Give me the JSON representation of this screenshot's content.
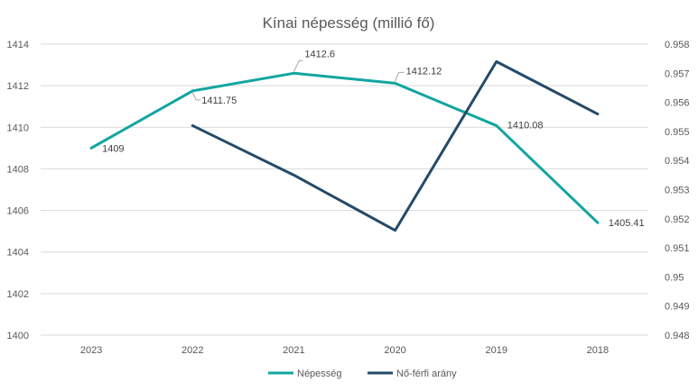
{
  "chart_data": {
    "type": "line",
    "title": "Kínai népesség (millió fő)",
    "categories": [
      "2023",
      "2022",
      "2021",
      "2020",
      "2019",
      "2018"
    ],
    "series": [
      {
        "name": "Népesség",
        "axis": "left",
        "color": "#12a5a0",
        "values": [
          1409,
          1411.75,
          1412.6,
          1412.12,
          1410.08,
          1405.41
        ],
        "data_labels": [
          "1409",
          "1411.75",
          "1412.6",
          "1412.12",
          "1410.08",
          "1405.41"
        ]
      },
      {
        "name": "Nő-férfi arány",
        "axis": "right",
        "color": "#264a66",
        "values": [
          null,
          0.9552,
          0.9535,
          0.9516,
          0.9574,
          0.9556
        ]
      }
    ],
    "y_left": {
      "lim": [
        1400,
        1414
      ],
      "ticks": [
        "1400",
        "1402",
        "1404",
        "1406",
        "1408",
        "1410",
        "1412",
        "1414"
      ]
    },
    "y_right": {
      "lim": [
        0.948,
        0.958
      ],
      "ticks": [
        "0.948",
        "0.949",
        "0.95",
        "0.951",
        "0.952",
        "0.953",
        "0.954",
        "0.955",
        "0.956",
        "0.957",
        "0.958"
      ]
    },
    "grid": true,
    "legend_position": "bottom"
  }
}
